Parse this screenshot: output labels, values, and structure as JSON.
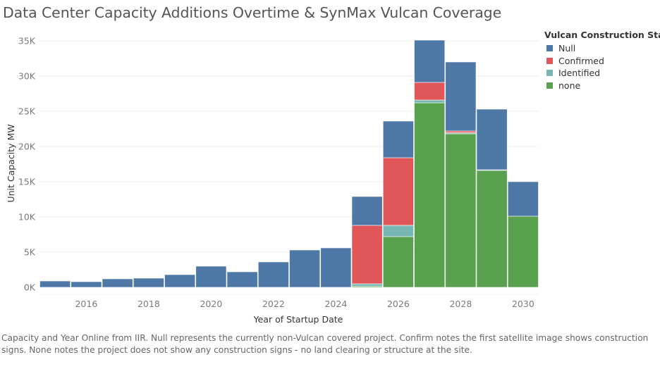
{
  "chart_data": {
    "type": "bar",
    "stacked": true,
    "title": "Data Center Capacity Additions Overtime & SynMax Vulcan Coverage",
    "xlabel": "Year of Startup Date",
    "ylabel": "Unit Capacity MW",
    "xlim": [
      2015,
      2031
    ],
    "ylim": [
      -1000,
      35000
    ],
    "x_ticks": [
      2016,
      2018,
      2020,
      2022,
      2024,
      2026,
      2028,
      2030
    ],
    "y_ticks": [
      {
        "value": 0,
        "label": "0K"
      },
      {
        "value": 5000,
        "label": "5K"
      },
      {
        "value": 10000,
        "label": "10K"
      },
      {
        "value": 15000,
        "label": "15K"
      },
      {
        "value": 20000,
        "label": "20K"
      },
      {
        "value": 25000,
        "label": "25K"
      },
      {
        "value": 30000,
        "label": "30K"
      },
      {
        "value": 35000,
        "label": "35K"
      }
    ],
    "legend_title": "Vulcan Construction Status",
    "legend_position": "right",
    "categories": [
      2015,
      2016,
      2017,
      2018,
      2019,
      2020,
      2021,
      2022,
      2023,
      2024,
      2025,
      2026,
      2027,
      2028,
      2029,
      2030
    ],
    "series": [
      {
        "name": "none",
        "color": "#59a14f",
        "values": [
          0,
          0,
          0,
          0,
          0,
          0,
          0,
          0,
          0,
          0,
          150,
          7200,
          26200,
          21800,
          16600,
          10100
        ]
      },
      {
        "name": "Identified",
        "color": "#76b7b2",
        "values": [
          0,
          0,
          0,
          0,
          0,
          0,
          0,
          0,
          0,
          0,
          350,
          1600,
          400,
          150,
          100,
          0
        ]
      },
      {
        "name": "Confirmed",
        "color": "#e15759",
        "values": [
          0,
          0,
          0,
          0,
          0,
          0,
          0,
          0,
          0,
          0,
          8300,
          9600,
          2500,
          250,
          0,
          0
        ]
      },
      {
        "name": "Null",
        "color": "#4e79a7",
        "values": [
          900,
          800,
          1200,
          1300,
          1800,
          3000,
          2200,
          3600,
          5300,
          5600,
          4100,
          5200,
          6000,
          9800,
          8600,
          4900
        ]
      }
    ]
  },
  "legend": {
    "title": "Vulcan Construction Status",
    "items": [
      {
        "label": "Null",
        "color": "#4e79a7"
      },
      {
        "label": "Confirmed",
        "color": "#e15759"
      },
      {
        "label": "Identified",
        "color": "#76b7b2"
      },
      {
        "label": "none",
        "color": "#59a14f"
      }
    ]
  },
  "caption": "Capacity and Year Online from IIR. Null represents the currently non-Vulcan covered project.  Confirm notes the first satellite image shows construction signs.  None notes the project does not show any construction signs - no land clearing or structure at the site."
}
